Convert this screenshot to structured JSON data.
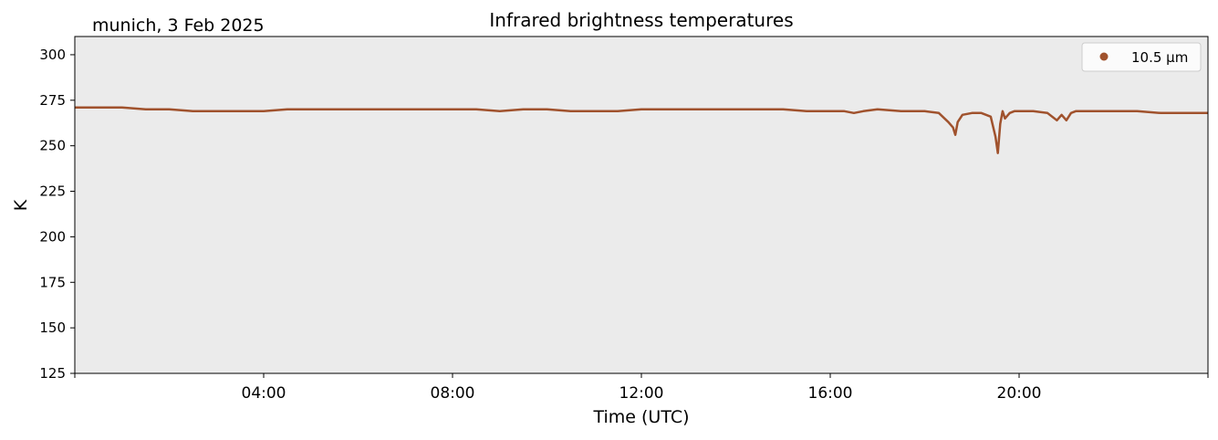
{
  "chart_data": {
    "type": "line",
    "title": "Infrared brightness temperatures",
    "subtitle": "munich, 3 Feb 2025",
    "xlabel": "Time (UTC)",
    "ylabel": "K",
    "xlim": [
      0,
      24
    ],
    "ylim": [
      125,
      310
    ],
    "x_ticks": [
      4,
      8,
      12,
      16,
      20
    ],
    "x_tick_labels": [
      "04:00",
      "08:00",
      "12:00",
      "16:00",
      "20:00"
    ],
    "y_ticks": [
      125,
      150,
      175,
      200,
      225,
      250,
      275,
      300
    ],
    "y_tick_labels": [
      "125",
      "150",
      "175",
      "200",
      "225",
      "250",
      "275",
      "300"
    ],
    "grid": false,
    "background_color": "#ebebeb",
    "legend_placement": "top-right",
    "series": [
      {
        "name": "10.5 µm",
        "color": "#a0522d",
        "x": [
          0.0,
          0.5,
          1.0,
          1.5,
          2.0,
          2.5,
          3.0,
          3.5,
          4.0,
          4.5,
          5.0,
          5.5,
          6.0,
          6.5,
          7.0,
          7.5,
          8.0,
          8.5,
          9.0,
          9.5,
          10.0,
          10.5,
          11.0,
          11.5,
          12.0,
          12.5,
          13.0,
          13.5,
          14.0,
          14.5,
          15.0,
          15.5,
          16.0,
          16.3,
          16.5,
          16.7,
          17.0,
          17.5,
          18.0,
          18.3,
          18.5,
          18.6,
          18.65,
          18.7,
          18.8,
          19.0,
          19.2,
          19.4,
          19.5,
          19.55,
          19.6,
          19.65,
          19.7,
          19.8,
          19.9,
          20.0,
          20.3,
          20.6,
          20.8,
          20.9,
          21.0,
          21.1,
          21.2,
          21.5,
          22.0,
          22.5,
          23.0,
          23.5,
          24.0
        ],
        "y": [
          271,
          271,
          271,
          270,
          270,
          269,
          269,
          269,
          269,
          270,
          270,
          270,
          270,
          270,
          270,
          270,
          270,
          270,
          269,
          270,
          270,
          269,
          269,
          269,
          270,
          270,
          270,
          270,
          270,
          270,
          270,
          269,
          269,
          269,
          268,
          269,
          270,
          269,
          269,
          268,
          263,
          260,
          256,
          263,
          267,
          268,
          268,
          266,
          255,
          246,
          262,
          269,
          265,
          268,
          269,
          269,
          269,
          268,
          264,
          267,
          264,
          268,
          269,
          269,
          269,
          269,
          268,
          268,
          268
        ]
      }
    ]
  }
}
